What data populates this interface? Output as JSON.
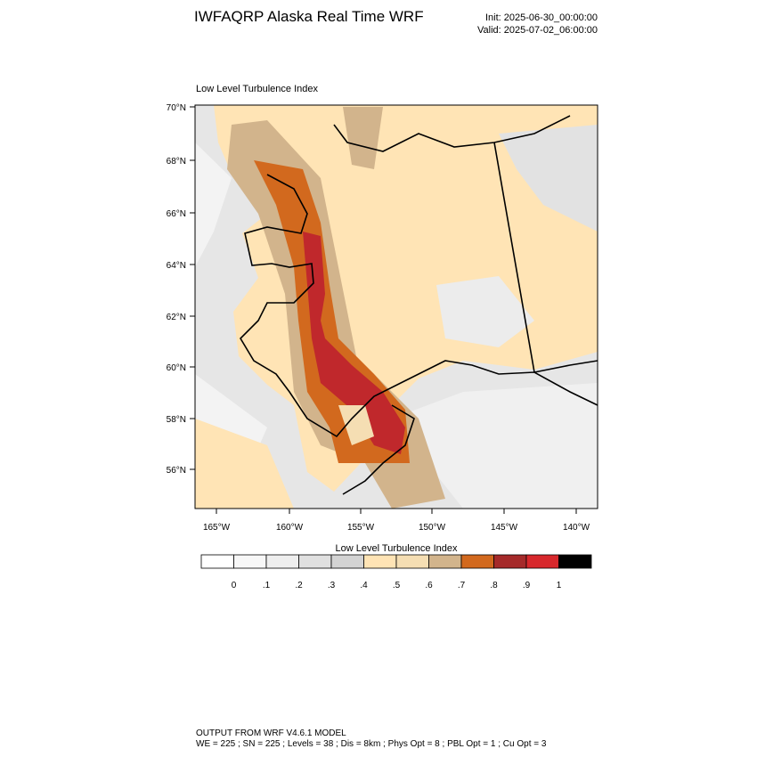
{
  "header": {
    "title": "IWFAQRP Alaska Real Time WRF",
    "init": "Init: 2025-06-30_00:00:00",
    "valid": "Valid: 2025-07-02_06:00:00"
  },
  "map": {
    "title": "Low Level Turbulence Index",
    "lat_labels": [
      "70°N",
      "68°N",
      "66°N",
      "64°N",
      "62°N",
      "60°N",
      "58°N",
      "56°N"
    ],
    "lon_labels": [
      "165°W",
      "160°W",
      "155°W",
      "150°W",
      "145°W",
      "140°W"
    ]
  },
  "colorbar": {
    "title": "Low Level Turbulence Index",
    "labels": [
      "0",
      ".1",
      ".2",
      ".3",
      ".4",
      ".5",
      ".6",
      ".7",
      ".8",
      ".9",
      "1"
    ],
    "colors": [
      "#ffffff",
      "#f7f7f7",
      "#eeeeee",
      "#e0e0e0",
      "#d3d3d3",
      "#ffe4b5",
      "#f5deb3",
      "#d2b48c",
      "#d2691e",
      "#a52a2a",
      "#d7282c",
      "#000000"
    ]
  },
  "footer": {
    "line1": "OUTPUT FROM WRF V4.6.1 MODEL",
    "line2": "WE = 225 ; SN = 225 ; Levels = 38 ; Dis = 8km ; Phys Opt = 8 ; PBL Opt = 1 ; Cu Opt = 3"
  }
}
